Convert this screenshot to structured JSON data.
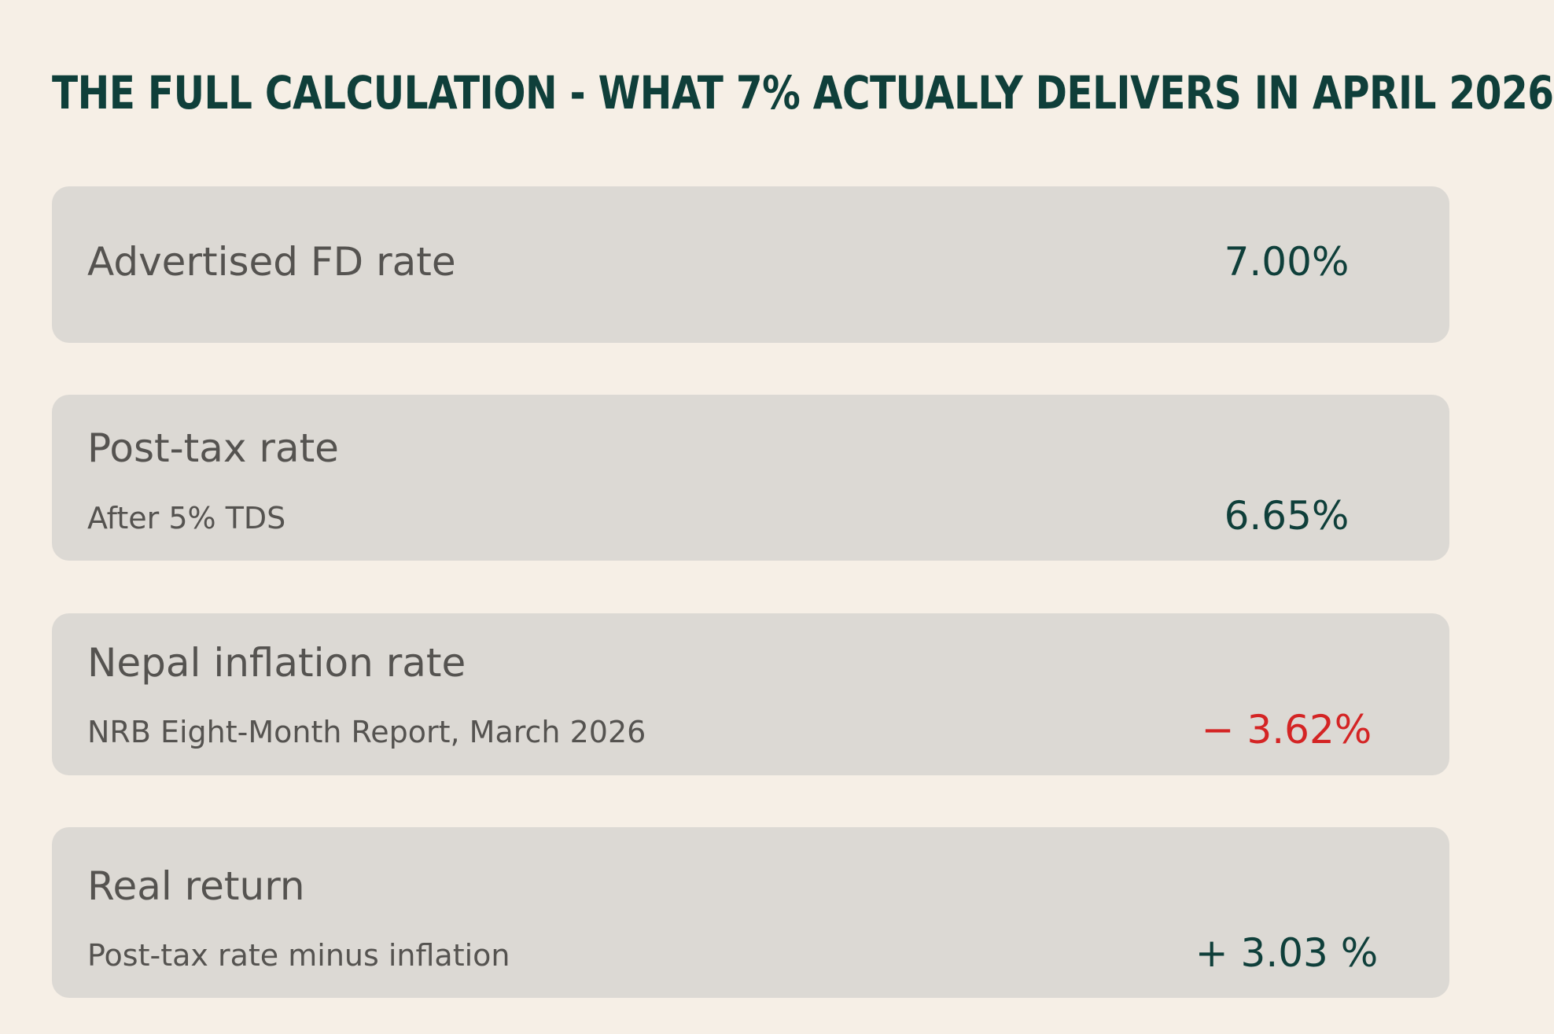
{
  "title": "THE FULL CALCULATION - WHAT 7% ACTUALLY DELIVERS IN APRIL 2026",
  "colors": {
    "background": "#f6efe6",
    "card": "#dcd9d4",
    "title": "#0f3f3a",
    "positive": "#0f3f3a",
    "negative": "#d42424",
    "label": "#555350"
  },
  "rows": [
    {
      "label": "Advertised FD rate",
      "sublabel": "",
      "value": "7.00%"
    },
    {
      "label": "Post-tax rate",
      "sublabel": "After 5% TDS",
      "value": "6.65%"
    },
    {
      "label": "Nepal inflation rate",
      "sublabel": "NRB Eight-Month Report, March 2026",
      "value": "− 3.62%"
    },
    {
      "label": "Real return",
      "sublabel": "Post-tax rate minus inflation",
      "value": "+ 3.03 %"
    }
  ]
}
